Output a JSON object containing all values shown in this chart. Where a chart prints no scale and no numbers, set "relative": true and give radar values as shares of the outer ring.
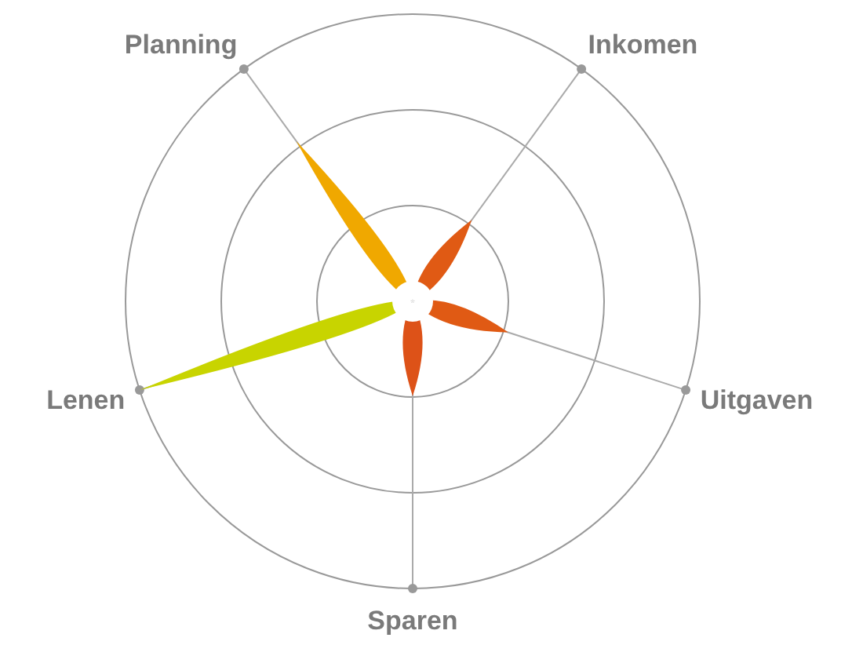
{
  "chart_data": {
    "type": "radar",
    "relative": true,
    "grid": true,
    "categories": [
      "Inkomen",
      "Uitgaven",
      "Sparen",
      "Lenen",
      "Planning"
    ],
    "series": [
      {
        "values": [
          0.35,
          0.35,
          0.33,
          1.0,
          0.69
        ],
        "colors": [
          "#e05a14",
          "#e05a14",
          "#dd5218",
          "#c8d400",
          "#f0a800"
        ]
      }
    ]
  }
}
